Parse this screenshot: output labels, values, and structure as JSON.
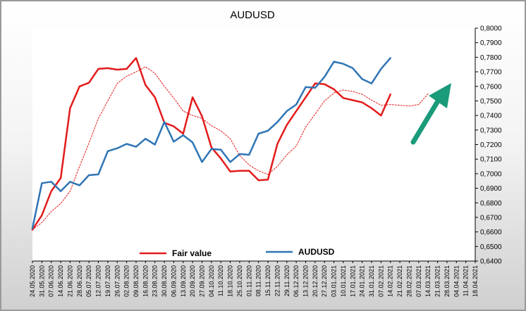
{
  "chart_data": {
    "type": "line",
    "title": "AUDUSD",
    "ylim": [
      0.64,
      0.8
    ],
    "y_ticks": [
      "0,6400",
      "0,6500",
      "0,6600",
      "0,6700",
      "0,6800",
      "0,6900",
      "0,7000",
      "0,7100",
      "0,7200",
      "0,7300",
      "0,7400",
      "0,7500",
      "0,7600",
      "0,7700",
      "0,7800",
      "0,7900",
      "0,8000"
    ],
    "y_tick_values": [
      0.64,
      0.65,
      0.66,
      0.67,
      0.68,
      0.69,
      0.7,
      0.71,
      0.72,
      0.73,
      0.74,
      0.75,
      0.76,
      0.77,
      0.78,
      0.79,
      0.8
    ],
    "x_categories": [
      "24.05.2020",
      "31.05.2020",
      "07.06.2020",
      "14.06.2020",
      "21.06.2020",
      "28.06.2020",
      "05.07.2020",
      "12.07.2020",
      "19.07.2020",
      "26.07.2020",
      "02.08.2020",
      "09.08.2020",
      "16.08.2020",
      "23.08.2020",
      "30.08.2020",
      "06.09.2020",
      "13.09.2020",
      "20.09.2020",
      "27.09.2020",
      "04.10.2020",
      "11.10.2020",
      "18.10.2020",
      "25.10.2020",
      "01.11.2020",
      "08.11.2020",
      "15.11.2020",
      "22.11.2020",
      "29.11.2020",
      "06.12.2020",
      "13.12.2020",
      "20.12.2020",
      "27.12.2020",
      "03.01.2021",
      "10.01.2021",
      "17.01.2021",
      "24.01.2021",
      "31.01.2021",
      "07.02.2021",
      "14.02.2021",
      "21.02.2021",
      "28.02.2021",
      "07.03.2021",
      "14.03.2021",
      "21.03.2021",
      "28.03.2021",
      "04.04.2021",
      "11.04.2021",
      "18.04.2021"
    ],
    "grid": false,
    "legend_position": "bottom-center",
    "series": [
      {
        "name": "Fair value",
        "color": "#e31b1b",
        "style": "solid",
        "values": [
          0.6615,
          0.6715,
          0.688,
          0.697,
          0.745,
          0.76,
          0.7625,
          0.772,
          0.7725,
          0.7715,
          0.772,
          0.7795,
          0.761,
          0.7525,
          0.735,
          0.7325,
          0.7275,
          0.7525,
          0.7395,
          0.718,
          0.7105,
          0.7015,
          0.702,
          0.702,
          0.6955,
          0.696,
          0.7205,
          0.7335,
          0.743,
          0.7525,
          0.762,
          0.7615,
          0.758,
          0.752,
          0.7505,
          0.749,
          0.745,
          0.74,
          0.7545
        ]
      },
      {
        "name": "",
        "color": "#e31b1b",
        "style": "dotted",
        "values": [
          0.6615,
          0.6665,
          0.674,
          0.6795,
          0.688,
          0.705,
          0.721,
          0.738,
          0.75,
          0.762,
          0.767,
          0.77,
          0.7735,
          0.769,
          0.76,
          0.752,
          0.743,
          0.74,
          0.738,
          0.733,
          0.7295,
          0.724,
          0.7125,
          0.706,
          0.702,
          0.6995,
          0.705,
          0.713,
          0.719,
          0.732,
          0.741,
          0.75,
          0.7555,
          0.7575,
          0.7565,
          0.7545,
          0.7505,
          0.747,
          0.7475,
          0.747,
          0.7465,
          0.7475,
          0.755
        ]
      },
      {
        "name": "AUDUSD",
        "color": "#2f75b5",
        "style": "solid",
        "values": [
          0.6625,
          0.6935,
          0.6945,
          0.688,
          0.6945,
          0.692,
          0.699,
          0.6995,
          0.7155,
          0.7175,
          0.7205,
          0.7185,
          0.724,
          0.72,
          0.7355,
          0.722,
          0.7265,
          0.7215,
          0.708,
          0.717,
          0.7165,
          0.708,
          0.7135,
          0.713,
          0.7275,
          0.7295,
          0.7355,
          0.743,
          0.7475,
          0.7595,
          0.759,
          0.7665,
          0.777,
          0.7755,
          0.7725,
          0.765,
          0.762,
          0.772,
          0.7795
        ]
      }
    ],
    "legend": [
      {
        "label": "Fair value",
        "color": "#e31b1b"
      },
      {
        "label": "AUDUSD",
        "color": "#2f75b5"
      }
    ],
    "annotation": {
      "type": "arrow",
      "color": "#1a9b7a",
      "direction": "up-right"
    }
  }
}
